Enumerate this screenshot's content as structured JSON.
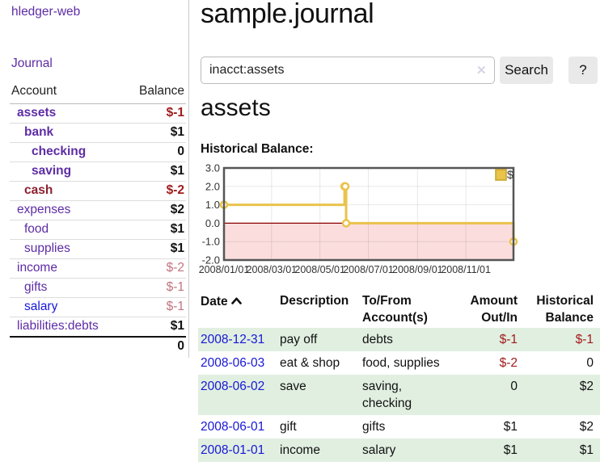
{
  "app": {
    "brand": "hledger-web"
  },
  "colors": {
    "link_purple": "#5e2ca5",
    "link_blue": "#1717d6",
    "negative_strong": "#a01c1c",
    "negative_soft": "#c1747e",
    "maroon_account": "#8c2130",
    "row_shade_green": "#e1efe1",
    "chart_line_gold": "#e9c34c",
    "chart_negative_fill": "#fbdddd",
    "chart_zero_line": "#8b0000",
    "divider_gray": "#cccccc"
  },
  "sidebar": {
    "nav": {
      "journal_label": "Journal"
    },
    "accounts_table": {
      "headers": {
        "account": "Account",
        "balance": "Balance"
      },
      "rows": [
        {
          "account": "assets",
          "depth": 1,
          "bold": true,
          "name_style": "purple",
          "balance": "$-1",
          "balance_style": "neg-strong"
        },
        {
          "account": "bank",
          "depth": 2,
          "bold": true,
          "name_style": "purple",
          "balance": "$1",
          "balance_style": "normal"
        },
        {
          "account": "checking",
          "depth": 3,
          "bold": true,
          "name_style": "purple",
          "balance": "0",
          "balance_style": "normal"
        },
        {
          "account": "saving",
          "depth": 3,
          "bold": true,
          "name_style": "purple",
          "balance": "$1",
          "balance_style": "normal"
        },
        {
          "account": "cash",
          "depth": 2,
          "bold": true,
          "name_style": "maroon",
          "balance": "$-2",
          "balance_style": "neg-strong"
        },
        {
          "account": "expenses",
          "depth": 1,
          "bold": false,
          "name_style": "purple",
          "balance": "$2",
          "balance_style": "normal"
        },
        {
          "account": "food",
          "depth": 2,
          "bold": false,
          "name_style": "purple",
          "balance": "$1",
          "balance_style": "normal"
        },
        {
          "account": "supplies",
          "depth": 2,
          "bold": false,
          "name_style": "purple",
          "balance": "$1",
          "balance_style": "normal"
        },
        {
          "account": "income",
          "depth": 1,
          "bold": false,
          "name_style": "purple",
          "balance": "$-2",
          "balance_style": "neg-soft"
        },
        {
          "account": "gifts",
          "depth": 2,
          "bold": false,
          "name_style": "purple",
          "balance": "$-1",
          "balance_style": "neg-soft"
        },
        {
          "account": "salary",
          "depth": 2,
          "bold": false,
          "name_style": "blue",
          "balance": "$-1",
          "balance_style": "neg-soft"
        },
        {
          "account": "liabilities:debts",
          "depth": 1,
          "bold": false,
          "name_style": "purple",
          "balance": "$1",
          "balance_style": "normal"
        }
      ],
      "total": "0"
    }
  },
  "main": {
    "title": "sample.journal",
    "search": {
      "value": "inacct:assets",
      "clear_icon_glyph": "✕",
      "search_button_label": "Search",
      "help_button_label": "?"
    },
    "account_heading": "assets",
    "chart_label": "Historical Balance:",
    "register": {
      "headers": {
        "date": "Date",
        "sort_icon": "chevron-up",
        "description": "Description",
        "accounts": "To/From Account(s)",
        "amount": "Amount Out/In",
        "balance": "Historical Balance"
      },
      "rows": [
        {
          "date": "2008-12-31",
          "description": "pay off",
          "accounts": [
            "debts"
          ],
          "amount": "$-1",
          "amount_negative": true,
          "balance": "$-1",
          "balance_negative": true,
          "shaded": true
        },
        {
          "date": "2008-06-03",
          "description": "eat & shop",
          "accounts": [
            "food",
            "supplies"
          ],
          "amount": "$-2",
          "amount_negative": true,
          "balance": "0",
          "balance_negative": false,
          "shaded": false
        },
        {
          "date": "2008-06-02",
          "description": "save",
          "accounts": [
            "saving",
            "checking"
          ],
          "amount": "0",
          "amount_negative": false,
          "balance": "$2",
          "balance_negative": false,
          "shaded": true
        },
        {
          "date": "2008-06-01",
          "description": "gift",
          "accounts": [
            "gifts"
          ],
          "amount": "$1",
          "amount_negative": false,
          "balance": "$2",
          "balance_negative": false,
          "shaded": false
        },
        {
          "date": "2008-01-01",
          "description": "income",
          "accounts": [
            "salary"
          ],
          "amount": "$1",
          "amount_negative": false,
          "balance": "$1",
          "balance_negative": false,
          "shaded": true
        }
      ]
    }
  },
  "chart_data": {
    "type": "line",
    "step": true,
    "title": "Historical Balance:",
    "legend": {
      "label": "$",
      "position": "top-right"
    },
    "series": [
      {
        "name": "$",
        "points": [
          {
            "x": "2008-01-01",
            "y": 1
          },
          {
            "x": "2008-06-01",
            "y": 2
          },
          {
            "x": "2008-06-02",
            "y": 2
          },
          {
            "x": "2008-06-03",
            "y": 0
          },
          {
            "x": "2008-12-31",
            "y": -1
          }
        ]
      }
    ],
    "ylim": [
      -2,
      3
    ],
    "y_ticks": [
      "3.0",
      "2.0",
      "1.0",
      "0.0",
      "-1.0",
      "-2.0"
    ],
    "y_tick_values": [
      3,
      2,
      1,
      0,
      -1,
      -2
    ],
    "xlim": [
      "2008-01-01",
      "2008-12-31"
    ],
    "x_ticks": [
      {
        "label": "2008/01/01",
        "value": "2008-01-01"
      },
      {
        "label": "2008/03/01",
        "value": "2008-03-01"
      },
      {
        "label": "2008/05/01",
        "value": "2008-05-01"
      },
      {
        "label": "2008/07/01",
        "value": "2008-07-01"
      },
      {
        "label": "2008/09/01",
        "value": "2008-09-01"
      },
      {
        "label": "2008/11/01",
        "value": "2008-11-01"
      }
    ],
    "grid": true,
    "negative_region_shaded": true
  }
}
